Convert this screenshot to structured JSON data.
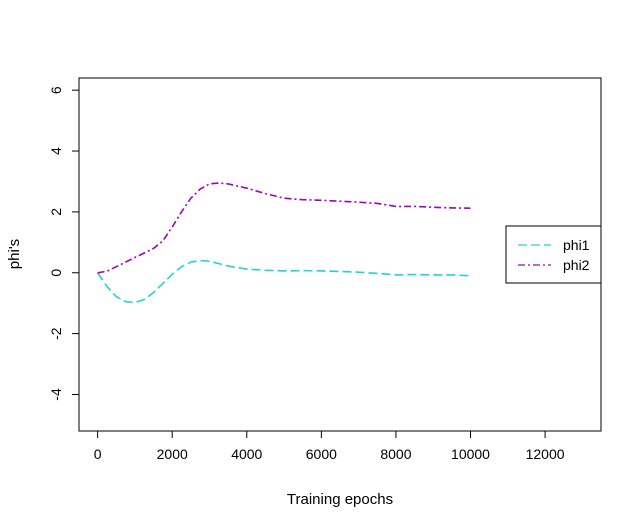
{
  "chart_data": {
    "type": "line",
    "title": "",
    "xlabel": "Training epochs",
    "ylabel": "phi's",
    "xlim": [
      -500,
      13500
    ],
    "ylim": [
      -5.2,
      6.4
    ],
    "xticks": [
      0,
      2000,
      4000,
      6000,
      8000,
      10000,
      12000
    ],
    "yticks": [
      -4,
      -2,
      0,
      2,
      4,
      6
    ],
    "xtick_labels": [
      "0",
      "2000",
      "4000",
      "6000",
      "8000",
      "10000",
      "12000"
    ],
    "ytick_labels": [
      "-4",
      "-2",
      "0",
      "2",
      "4",
      "6"
    ],
    "grid": false,
    "legend_position": "right",
    "series": [
      {
        "name": "phi1",
        "color": "#22d3d8",
        "dash": "long-dash",
        "x": [
          0,
          250,
          500,
          750,
          1000,
          1250,
          1500,
          1750,
          2000,
          2250,
          2500,
          2750,
          3000,
          3250,
          3500,
          4000,
          4500,
          5000,
          5500,
          6000,
          6500,
          7000,
          7500,
          8000,
          8500,
          9000,
          9500,
          10000
        ],
        "y": [
          0.0,
          -0.45,
          -0.78,
          -0.95,
          -0.98,
          -0.88,
          -0.65,
          -0.35,
          -0.05,
          0.2,
          0.35,
          0.4,
          0.38,
          0.3,
          0.22,
          0.12,
          0.08,
          0.06,
          0.07,
          0.06,
          0.04,
          0.02,
          -0.02,
          -0.07,
          -0.06,
          -0.07,
          -0.07,
          -0.1
        ]
      },
      {
        "name": "phi2",
        "color": "#a000c0",
        "dash": "dash-dot",
        "x": [
          0,
          250,
          500,
          750,
          1000,
          1250,
          1500,
          1750,
          2000,
          2250,
          2500,
          2750,
          3000,
          3250,
          3500,
          4000,
          4500,
          5000,
          5500,
          6000,
          6500,
          7000,
          7500,
          8000,
          8500,
          9000,
          9500,
          10000
        ],
        "y": [
          0.0,
          0.05,
          0.2,
          0.35,
          0.5,
          0.65,
          0.8,
          1.05,
          1.5,
          2.0,
          2.45,
          2.75,
          2.92,
          2.95,
          2.92,
          2.78,
          2.6,
          2.45,
          2.4,
          2.38,
          2.35,
          2.32,
          2.28,
          2.18,
          2.18,
          2.15,
          2.13,
          2.12
        ]
      }
    ]
  }
}
